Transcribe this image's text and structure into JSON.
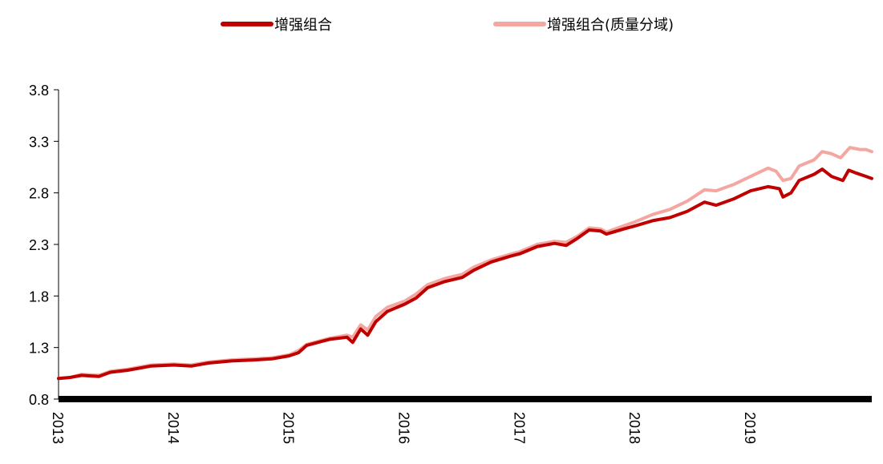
{
  "chart_data": {
    "type": "line",
    "title": "",
    "xlabel": "",
    "ylabel": "",
    "ylim": [
      0.8,
      3.8
    ],
    "yticks": [
      "0.8",
      "1.3",
      "1.8",
      "2.3",
      "2.8",
      "3.3",
      "3.8"
    ],
    "xlim": [
      2013.0,
      2020.05
    ],
    "xticks": [
      "2013",
      "2014",
      "2015",
      "2016",
      "2017",
      "2018",
      "2019"
    ],
    "legend_position": "top-center",
    "series": [
      {
        "name": "增强组合",
        "color": "#C00000",
        "points": [
          [
            2013.0,
            1.0
          ],
          [
            2013.1,
            1.01
          ],
          [
            2013.2,
            1.03
          ],
          [
            2013.35,
            1.02
          ],
          [
            2013.45,
            1.06
          ],
          [
            2013.6,
            1.08
          ],
          [
            2013.8,
            1.12
          ],
          [
            2014.0,
            1.13
          ],
          [
            2014.15,
            1.12
          ],
          [
            2014.3,
            1.15
          ],
          [
            2014.5,
            1.17
          ],
          [
            2014.7,
            1.18
          ],
          [
            2014.85,
            1.19
          ],
          [
            2015.0,
            1.22
          ],
          [
            2015.08,
            1.25
          ],
          [
            2015.15,
            1.32
          ],
          [
            2015.25,
            1.35
          ],
          [
            2015.35,
            1.38
          ],
          [
            2015.5,
            1.4
          ],
          [
            2015.55,
            1.35
          ],
          [
            2015.62,
            1.48
          ],
          [
            2015.68,
            1.42
          ],
          [
            2015.75,
            1.55
          ],
          [
            2015.85,
            1.65
          ],
          [
            2016.0,
            1.72
          ],
          [
            2016.1,
            1.78
          ],
          [
            2016.2,
            1.88
          ],
          [
            2016.35,
            1.94
          ],
          [
            2016.5,
            1.98
          ],
          [
            2016.6,
            2.05
          ],
          [
            2016.75,
            2.13
          ],
          [
            2016.9,
            2.18
          ],
          [
            2017.0,
            2.21
          ],
          [
            2017.15,
            2.28
          ],
          [
            2017.3,
            2.31
          ],
          [
            2017.4,
            2.29
          ],
          [
            2017.5,
            2.36
          ],
          [
            2017.6,
            2.44
          ],
          [
            2017.7,
            2.43
          ],
          [
            2017.75,
            2.4
          ],
          [
            2017.9,
            2.45
          ],
          [
            2018.0,
            2.48
          ],
          [
            2018.15,
            2.53
          ],
          [
            2018.3,
            2.56
          ],
          [
            2018.45,
            2.62
          ],
          [
            2018.6,
            2.71
          ],
          [
            2018.7,
            2.68
          ],
          [
            2018.85,
            2.74
          ],
          [
            2019.0,
            2.82
          ],
          [
            2019.15,
            2.86
          ],
          [
            2019.25,
            2.84
          ],
          [
            2019.28,
            2.76
          ],
          [
            2019.35,
            2.8
          ],
          [
            2019.42,
            2.92
          ],
          [
            2019.55,
            2.98
          ],
          [
            2019.62,
            3.03
          ],
          [
            2019.7,
            2.96
          ],
          [
            2019.8,
            2.92
          ],
          [
            2019.85,
            3.02
          ],
          [
            2019.92,
            2.99
          ],
          [
            2020.0,
            2.96
          ],
          [
            2020.05,
            2.94
          ]
        ]
      },
      {
        "name": "增强组合(质量分域)",
        "color": "#F4A6A0",
        "points": [
          [
            2013.0,
            1.0
          ],
          [
            2013.1,
            1.01
          ],
          [
            2013.2,
            1.04
          ],
          [
            2013.35,
            1.03
          ],
          [
            2013.45,
            1.07
          ],
          [
            2013.6,
            1.09
          ],
          [
            2013.8,
            1.13
          ],
          [
            2014.0,
            1.14
          ],
          [
            2014.15,
            1.13
          ],
          [
            2014.3,
            1.16
          ],
          [
            2014.5,
            1.18
          ],
          [
            2014.7,
            1.19
          ],
          [
            2014.85,
            1.2
          ],
          [
            2015.0,
            1.23
          ],
          [
            2015.08,
            1.27
          ],
          [
            2015.15,
            1.33
          ],
          [
            2015.25,
            1.36
          ],
          [
            2015.35,
            1.39
          ],
          [
            2015.5,
            1.42
          ],
          [
            2015.55,
            1.4
          ],
          [
            2015.62,
            1.52
          ],
          [
            2015.68,
            1.47
          ],
          [
            2015.75,
            1.6
          ],
          [
            2015.85,
            1.69
          ],
          [
            2016.0,
            1.75
          ],
          [
            2016.1,
            1.82
          ],
          [
            2016.2,
            1.91
          ],
          [
            2016.35,
            1.97
          ],
          [
            2016.5,
            2.01
          ],
          [
            2016.6,
            2.08
          ],
          [
            2016.75,
            2.15
          ],
          [
            2016.9,
            2.2
          ],
          [
            2017.0,
            2.23
          ],
          [
            2017.15,
            2.3
          ],
          [
            2017.3,
            2.33
          ],
          [
            2017.4,
            2.32
          ],
          [
            2017.5,
            2.38
          ],
          [
            2017.6,
            2.46
          ],
          [
            2017.7,
            2.45
          ],
          [
            2017.75,
            2.42
          ],
          [
            2017.9,
            2.48
          ],
          [
            2018.0,
            2.52
          ],
          [
            2018.15,
            2.59
          ],
          [
            2018.3,
            2.64
          ],
          [
            2018.45,
            2.72
          ],
          [
            2018.6,
            2.83
          ],
          [
            2018.7,
            2.82
          ],
          [
            2018.85,
            2.88
          ],
          [
            2019.0,
            2.96
          ],
          [
            2019.15,
            3.04
          ],
          [
            2019.22,
            3.01
          ],
          [
            2019.28,
            2.92
          ],
          [
            2019.35,
            2.94
          ],
          [
            2019.42,
            3.06
          ],
          [
            2019.55,
            3.12
          ],
          [
            2019.62,
            3.2
          ],
          [
            2019.7,
            3.18
          ],
          [
            2019.78,
            3.14
          ],
          [
            2019.86,
            3.24
          ],
          [
            2019.95,
            3.22
          ],
          [
            2020.0,
            3.22
          ],
          [
            2020.05,
            3.2
          ]
        ]
      }
    ]
  }
}
